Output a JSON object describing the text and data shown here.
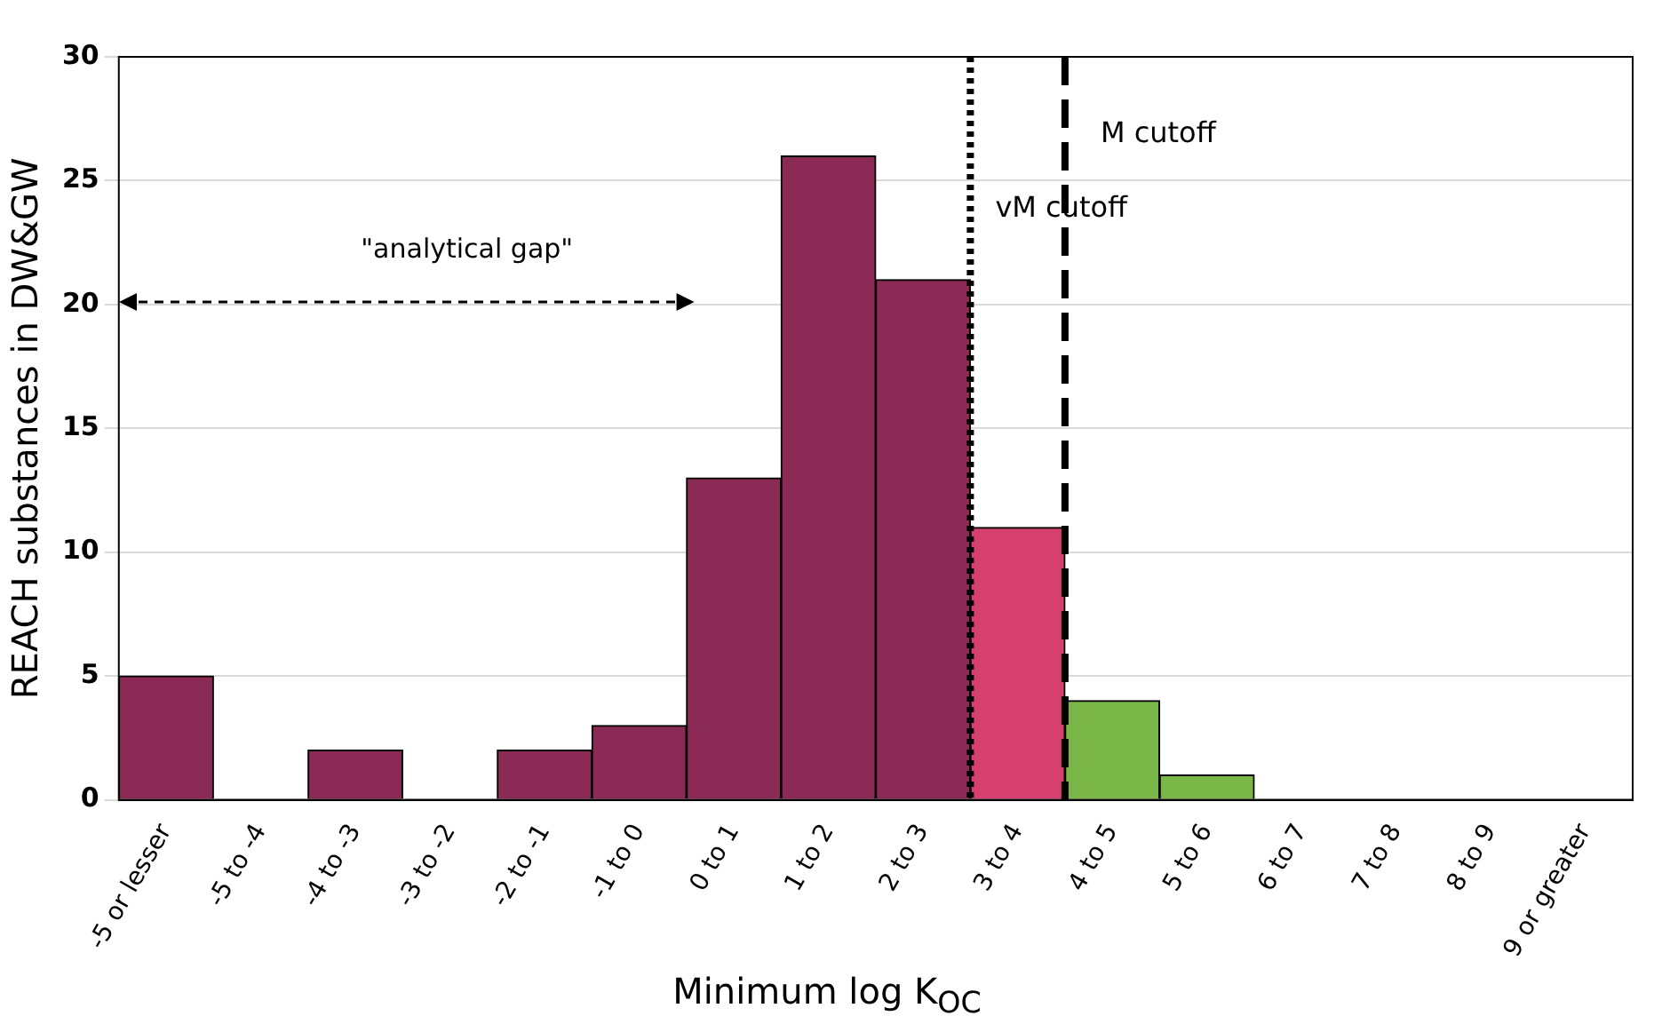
{
  "chart_data": {
    "type": "bar",
    "ylabel": "REACH substances in DW&GW",
    "xlabel": "Minimum log K$_{OC}$",
    "categories": [
      "-5 or lesser",
      "-5 to -4",
      "-4 to -3",
      "-3 to -2",
      "-2 to -1",
      "-1 to 0",
      "0 to 1",
      "1 to 2",
      "2 to 3",
      "3 to 4",
      "4 to 5",
      "5 to 6",
      "6 to 7",
      "7 to 8",
      "8 to 9",
      "9 or greater"
    ],
    "values": [
      5,
      0,
      2,
      0,
      2,
      3,
      13,
      26,
      21,
      11,
      4,
      1,
      0,
      0,
      0,
      0
    ],
    "colors": [
      "#8b2a55",
      "#8b2a55",
      "#8b2a55",
      "#8b2a55",
      "#8b2a55",
      "#8b2a55",
      "#8b2a55",
      "#8b2a55",
      "#8b2a55",
      "#d6406e",
      "#7ab648",
      "#7ab648",
      "#7ab648",
      "#7ab648",
      "#7ab648",
      "#7ab648"
    ],
    "ylim": [
      0,
      30
    ],
    "yticks": [
      0,
      5,
      10,
      15,
      20,
      25,
      30
    ],
    "grid": "y",
    "legend": false,
    "ref_lines": [
      {
        "axis": "x",
        "value": "3 to 4",
        "label": "vM cutoff",
        "line_style": "dotted",
        "color": "#000000"
      },
      {
        "axis": "x",
        "value": "4 to 5",
        "label": "M cutoff",
        "line_style": "dashed",
        "color": "#000000"
      }
    ],
    "annotations": [
      "\"analytical gap\""
    ]
  }
}
